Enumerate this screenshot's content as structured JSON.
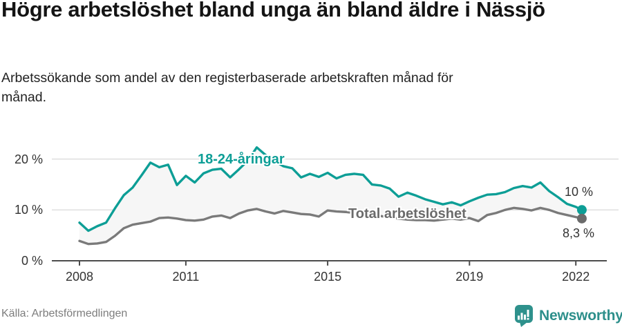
{
  "chart_data": {
    "type": "line",
    "title": "Högre arbetslöshet bland unga än bland äldre i Nässjö",
    "subtitle": "Arbetssökande som andel av den registerbaserade arbetskraften månad för månad.",
    "unit": "percent",
    "grid": "horizontal-light",
    "area_fill_between_series": true,
    "ylim": [
      0,
      23.5
    ],
    "x": [
      2008.0,
      2008.25,
      2008.5,
      2008.75,
      2009.0,
      2009.25,
      2009.5,
      2009.75,
      2010.0,
      2010.25,
      2010.5,
      2010.75,
      2011.0,
      2011.25,
      2011.5,
      2011.75,
      2012.0,
      2012.25,
      2012.5,
      2012.75,
      2013.0,
      2013.25,
      2013.5,
      2013.75,
      2014.0,
      2014.25,
      2014.5,
      2014.75,
      2015.0,
      2015.25,
      2015.5,
      2015.75,
      2016.0,
      2016.25,
      2016.5,
      2016.75,
      2017.0,
      2017.25,
      2017.5,
      2017.75,
      2018.0,
      2018.25,
      2018.5,
      2018.75,
      2019.0,
      2019.25,
      2019.5,
      2019.75,
      2020.0,
      2020.25,
      2020.5,
      2020.75,
      2021.0,
      2021.25,
      2021.5,
      2021.75,
      2022.0,
      2022.17
    ],
    "series": [
      {
        "name": "18-24-åringar",
        "color": "#0d9e96",
        "end_label": "10 %",
        "end_value": 10.0,
        "values": [
          7.5,
          5.9,
          6.8,
          7.5,
          10.3,
          12.9,
          14.4,
          16.8,
          19.3,
          18.4,
          18.9,
          14.9,
          16.7,
          15.4,
          17.2,
          17.9,
          18.1,
          16.4,
          18.0,
          19.7,
          22.3,
          20.8,
          19.6,
          18.6,
          18.2,
          16.4,
          17.1,
          16.5,
          17.3,
          16.2,
          16.9,
          17.1,
          16.9,
          15.0,
          14.8,
          14.2,
          12.6,
          13.4,
          12.8,
          12.1,
          11.6,
          11.1,
          11.5,
          10.9,
          11.7,
          12.4,
          13.0,
          13.1,
          13.5,
          14.3,
          14.7,
          14.4,
          15.4,
          13.7,
          12.5,
          11.2,
          10.6,
          10.0
        ]
      },
      {
        "name": "Total arbetslöshet",
        "color": "#7a7a7a",
        "end_label": "8,3 %",
        "end_value": 8.3,
        "values": [
          3.9,
          3.3,
          3.4,
          3.7,
          4.9,
          6.4,
          7.1,
          7.4,
          7.7,
          8.4,
          8.5,
          8.3,
          8.0,
          7.9,
          8.1,
          8.7,
          8.9,
          8.4,
          9.3,
          9.9,
          10.2,
          9.7,
          9.3,
          9.8,
          9.5,
          9.2,
          9.1,
          8.7,
          9.9,
          9.7,
          9.6,
          9.4,
          9.3,
          9.0,
          8.8,
          8.5,
          8.3,
          8.1,
          8.0,
          8.0,
          7.9,
          8.1,
          8.3,
          8.1,
          8.4,
          7.8,
          9.0,
          9.4,
          10.0,
          10.4,
          10.2,
          9.9,
          10.4,
          10.0,
          9.4,
          9.0,
          8.6,
          8.3
        ]
      }
    ],
    "x_axis": {
      "ticks": [
        {
          "value": 2008,
          "label": "2008"
        },
        {
          "value": 2011,
          "label": "2011"
        },
        {
          "value": 2015,
          "label": "2015"
        },
        {
          "value": 2019,
          "label": "2019"
        },
        {
          "value": 2022,
          "label": "2022"
        }
      ]
    },
    "y_axis": {
      "ticks": [
        {
          "value": 0,
          "label": "0 %"
        },
        {
          "value": 10,
          "label": "10 %"
        },
        {
          "value": 20,
          "label": "20 %"
        }
      ]
    },
    "colors": {
      "grid": "#dcdcdc",
      "axis": "#4b4b4b",
      "band_fill": "#f6f6f6",
      "tick_text": "#333333"
    },
    "source": "Källa: Arbetsförmedlingen"
  },
  "footer": {
    "brand": "Newsworthy",
    "brand_color": "#2d8f8b",
    "logo_icon": "bar-chart-speech-bubble-icon"
  }
}
